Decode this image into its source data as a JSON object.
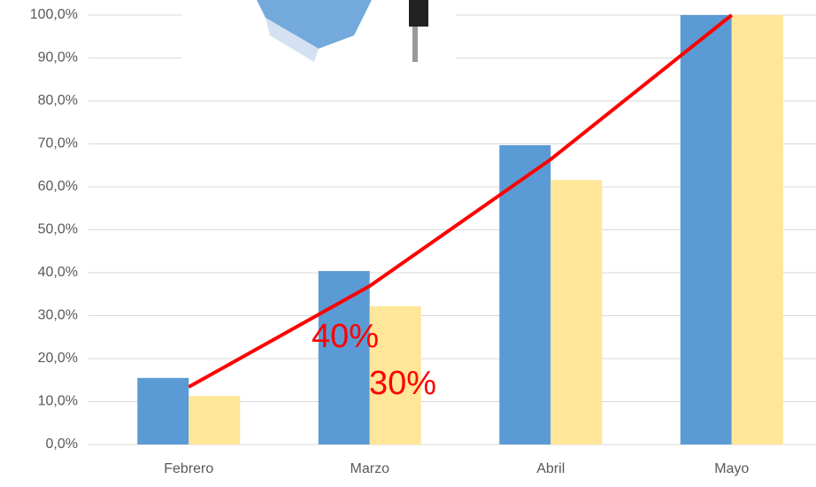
{
  "chart_data": {
    "type": "bar",
    "categories": [
      "Febrero",
      "Marzo",
      "Abril",
      "Mayo"
    ],
    "series": [
      {
        "color": "#5b9bd5",
        "values": [
          15.5,
          40.4,
          69.7,
          100
        ]
      },
      {
        "color": "#ffe699",
        "values": [
          11.3,
          32.2,
          61.6,
          100
        ]
      },
      {
        "type": "line",
        "color": "#ff0000",
        "values": [
          13.4,
          36.9,
          66.4,
          100
        ]
      }
    ],
    "ylim": [
      0,
      100
    ],
    "yticks": [
      {
        "value": 0,
        "label": "0,0%"
      },
      {
        "value": 10,
        "label": "10,0%"
      },
      {
        "value": 20,
        "label": "20,0%"
      },
      {
        "value": 30,
        "label": "30,0%"
      },
      {
        "value": 40,
        "label": "40,0%"
      },
      {
        "value": 50,
        "label": "50,0%"
      },
      {
        "value": 60,
        "label": "60,0%"
      },
      {
        "value": 70,
        "label": "70,0%"
      },
      {
        "value": 80,
        "label": "80,0%"
      },
      {
        "value": 90,
        "label": "90,0%"
      },
      {
        "value": 100,
        "label": "100,0%"
      }
    ],
    "grid": true,
    "annotations": [
      "40%",
      "30%"
    ]
  }
}
